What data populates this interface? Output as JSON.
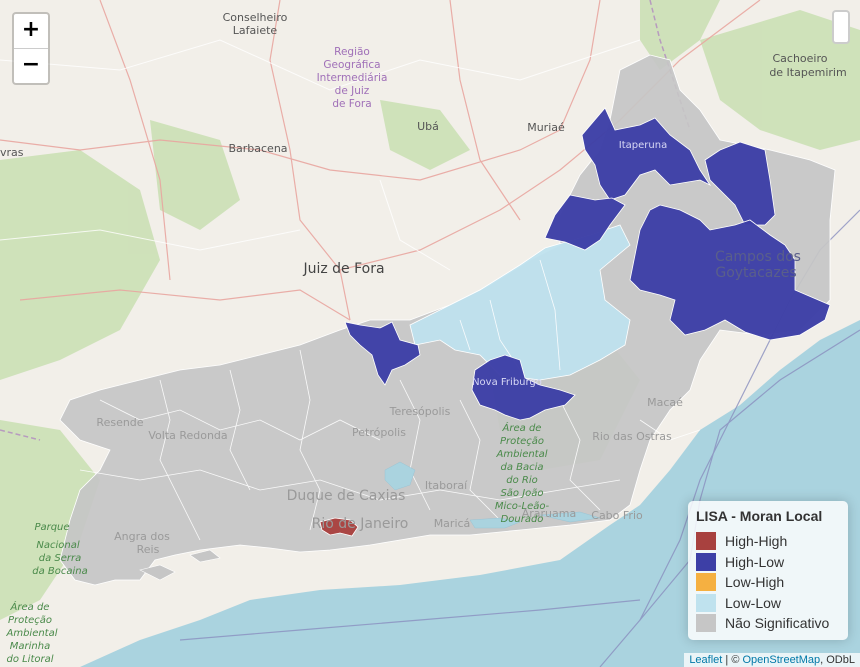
{
  "zoom": {
    "in_label": "+",
    "out_label": "−"
  },
  "legend": {
    "title": "LISA - Moran Local",
    "items": [
      {
        "label": "High-High",
        "color": "#a8413f"
      },
      {
        "label": "High-Low",
        "color": "#3d3fa6"
      },
      {
        "label": "Low-High",
        "color": "#f5b041"
      },
      {
        "label": "Low-Low",
        "color": "#bfe2ee"
      },
      {
        "label": "Não Significativo",
        "color": "#c6c6c6"
      }
    ]
  },
  "attribution": {
    "leaflet": "Leaflet",
    "sep": " | © ",
    "osm": "OpenStreetMap",
    "rest": ", ODbL"
  },
  "places": {
    "conselheiro": "Conselheiro",
    "lafaiete": "Lafaiete",
    "regiao1": "Região",
    "regiao2": "Geográfica",
    "regiao3": "Intermediária",
    "regiao4": "de Juiz",
    "regiao5": "de Fora",
    "cachoeiro1": "Cachoeiro",
    "cachoeiro2": "de Itapemirim",
    "uba": "Ubá",
    "muriae": "Muriaé",
    "barbacena": "Barbacena",
    "vras": "vras",
    "juiz_de_fora": "Juiz de Fora",
    "itaperuna": "Itaperuna",
    "campos1": "Campos dos",
    "campos2": "Goytacazes",
    "nova_friburgo": "Nova Friburgo",
    "resende": "Resende",
    "volta_redonda": "Volta Redonda",
    "petropolis": "Petrópolis",
    "teresopolis": "Teresópolis",
    "macae": "Macaé",
    "rio_das_ostras": "Rio das Ostras",
    "duque": "Duque de Caxias",
    "rio": "Rio de Janeiro",
    "itaborai": "Itaboraí",
    "marica": "Maricá",
    "araruama": "Araruama",
    "cabo_frio": "Cabo Frio",
    "angra1": "Angra dos",
    "angra2": "Reis",
    "bocaina1": "Parque",
    "bocaina2": "Nacional",
    "bocaina3": "da Serra",
    "bocaina4": "da Bocaina",
    "protecao1": "Área de",
    "protecao2": "Proteção",
    "protecao3": "Ambiental",
    "protecao4": "Marinha",
    "protecao5": "do Litoral",
    "apa1": "Área de",
    "apa2": "Proteção",
    "apa3": "Ambiental",
    "apa4": "da Bacia",
    "apa5": "do Rio",
    "apa6": "São João",
    "apa7": "Mico-Leão-",
    "apa8": "Dourado"
  }
}
